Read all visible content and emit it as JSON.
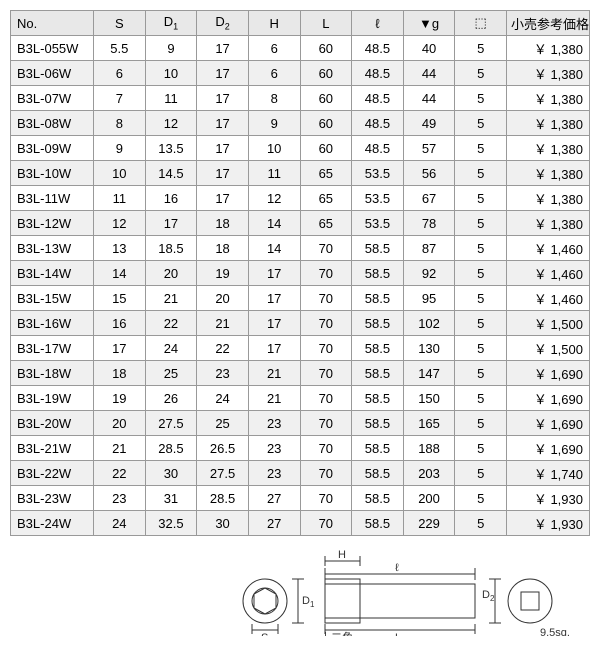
{
  "columns": [
    "No.",
    "S",
    "D₁",
    "D₂",
    "H",
    "L",
    "ℓ",
    "▼g",
    "⬚",
    "小売参考価格"
  ],
  "rows": [
    [
      "B3L-055W",
      "5.5",
      "9",
      "17",
      "6",
      "60",
      "48.5",
      "40",
      "5",
      "￥ 1,380"
    ],
    [
      "B3L-06W",
      "6",
      "10",
      "17",
      "6",
      "60",
      "48.5",
      "44",
      "5",
      "￥ 1,380"
    ],
    [
      "B3L-07W",
      "7",
      "11",
      "17",
      "8",
      "60",
      "48.5",
      "44",
      "5",
      "￥ 1,380"
    ],
    [
      "B3L-08W",
      "8",
      "12",
      "17",
      "9",
      "60",
      "48.5",
      "49",
      "5",
      "￥ 1,380"
    ],
    [
      "B3L-09W",
      "9",
      "13.5",
      "17",
      "10",
      "60",
      "48.5",
      "57",
      "5",
      "￥ 1,380"
    ],
    [
      "B3L-10W",
      "10",
      "14.5",
      "17",
      "11",
      "65",
      "53.5",
      "56",
      "5",
      "￥ 1,380"
    ],
    [
      "B3L-11W",
      "11",
      "16",
      "17",
      "12",
      "65",
      "53.5",
      "67",
      "5",
      "￥ 1,380"
    ],
    [
      "B3L-12W",
      "12",
      "17",
      "18",
      "14",
      "65",
      "53.5",
      "78",
      "5",
      "￥ 1,380"
    ],
    [
      "B3L-13W",
      "13",
      "18.5",
      "18",
      "14",
      "70",
      "58.5",
      "87",
      "5",
      "￥ 1,460"
    ],
    [
      "B3L-14W",
      "14",
      "20",
      "19",
      "17",
      "70",
      "58.5",
      "92",
      "5",
      "￥ 1,460"
    ],
    [
      "B3L-15W",
      "15",
      "21",
      "20",
      "17",
      "70",
      "58.5",
      "95",
      "5",
      "￥ 1,460"
    ],
    [
      "B3L-16W",
      "16",
      "22",
      "21",
      "17",
      "70",
      "58.5",
      "102",
      "5",
      "￥ 1,500"
    ],
    [
      "B3L-17W",
      "17",
      "24",
      "22",
      "17",
      "70",
      "58.5",
      "130",
      "5",
      "￥ 1,500"
    ],
    [
      "B3L-18W",
      "18",
      "25",
      "23",
      "21",
      "70",
      "58.5",
      "147",
      "5",
      "￥ 1,690"
    ],
    [
      "B3L-19W",
      "19",
      "26",
      "24",
      "21",
      "70",
      "58.5",
      "150",
      "5",
      "￥ 1,690"
    ],
    [
      "B3L-20W",
      "20",
      "27.5",
      "25",
      "23",
      "70",
      "58.5",
      "165",
      "5",
      "￥ 1,690"
    ],
    [
      "B3L-21W",
      "21",
      "28.5",
      "26.5",
      "23",
      "70",
      "58.5",
      "188",
      "5",
      "￥ 1,690"
    ],
    [
      "B3L-22W",
      "22",
      "30",
      "27.5",
      "23",
      "70",
      "58.5",
      "203",
      "5",
      "￥ 1,740"
    ],
    [
      "B3L-23W",
      "23",
      "31",
      "28.5",
      "27",
      "70",
      "58.5",
      "200",
      "5",
      "￥ 1,930"
    ],
    [
      "B3L-24W",
      "24",
      "32.5",
      "30",
      "27",
      "70",
      "58.5",
      "229",
      "5",
      "￥ 1,930"
    ]
  ],
  "diagram": {
    "labels": {
      "S": "S",
      "D1": "D",
      "D2": "D",
      "H": "H",
      "L": "L",
      "l": "ℓ",
      "twelve": "十二角",
      "sq": "9.5sq."
    }
  }
}
